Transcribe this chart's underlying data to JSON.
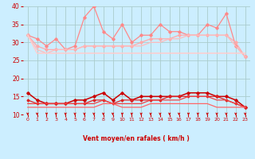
{
  "x": [
    0,
    1,
    2,
    3,
    4,
    5,
    6,
    7,
    8,
    9,
    10,
    11,
    12,
    13,
    14,
    15,
    16,
    17,
    18,
    19,
    20,
    21,
    22,
    23
  ],
  "series": [
    {
      "name": "rafales_high",
      "color": "#ff8888",
      "lw": 0.9,
      "marker": "D",
      "ms": 1.8,
      "values": [
        32,
        31,
        29,
        31,
        28,
        29,
        37,
        40,
        33,
        31,
        35,
        30,
        32,
        32,
        35,
        33,
        33,
        32,
        32,
        35,
        34,
        38,
        29,
        26
      ]
    },
    {
      "name": "rafales_mid1",
      "color": "#ffaaaa",
      "lw": 0.9,
      "marker": "D",
      "ms": 1.8,
      "values": [
        32,
        29,
        28,
        28,
        28,
        28,
        29,
        29,
        29,
        29,
        29,
        29,
        30,
        31,
        31,
        31,
        32,
        32,
        32,
        32,
        32,
        32,
        30,
        26
      ]
    },
    {
      "name": "rafales_mid2",
      "color": "#ffbbbb",
      "lw": 0.9,
      "marker": null,
      "ms": 0,
      "values": [
        32,
        28,
        27,
        28,
        28,
        28,
        29,
        29,
        29,
        29,
        29,
        29,
        29,
        30,
        30,
        31,
        31,
        32,
        32,
        32,
        32,
        32,
        29,
        26
      ]
    },
    {
      "name": "moyen_flat",
      "color": "#ffcccc",
      "lw": 1.1,
      "marker": null,
      "ms": 0,
      "values": [
        32,
        27,
        27,
        27,
        27,
        27,
        27,
        27,
        27,
        27,
        27,
        27,
        27,
        27,
        27,
        27,
        27,
        27,
        27,
        27,
        27,
        27,
        27,
        27
      ]
    },
    {
      "name": "vent_high",
      "color": "#cc0000",
      "lw": 1.1,
      "marker": "D",
      "ms": 1.8,
      "values": [
        16,
        14,
        13,
        13,
        13,
        14,
        14,
        15,
        16,
        14,
        16,
        14,
        15,
        15,
        15,
        15,
        15,
        16,
        16,
        16,
        15,
        15,
        14,
        12
      ]
    },
    {
      "name": "vent_mid1",
      "color": "#dd2222",
      "lw": 0.9,
      "marker": "D",
      "ms": 1.5,
      "values": [
        14,
        13,
        13,
        13,
        13,
        13,
        13,
        14,
        14,
        13,
        14,
        14,
        14,
        14,
        14,
        15,
        15,
        15,
        15,
        15,
        15,
        14,
        13,
        12
      ]
    },
    {
      "name": "vent_mid2",
      "color": "#ee4444",
      "lw": 0.9,
      "marker": null,
      "ms": 0,
      "values": [
        13,
        13,
        13,
        13,
        13,
        13,
        13,
        13,
        14,
        13,
        13,
        13,
        13,
        14,
        14,
        14,
        14,
        15,
        15,
        15,
        14,
        14,
        13,
        12
      ]
    },
    {
      "name": "vent_low",
      "color": "#ff6666",
      "lw": 0.9,
      "marker": null,
      "ms": 0,
      "values": [
        12,
        12,
        12,
        12,
        12,
        12,
        12,
        12,
        13,
        13,
        12,
        12,
        12,
        13,
        13,
        13,
        13,
        13,
        13,
        13,
        12,
        12,
        12,
        12
      ]
    }
  ],
  "xlabel": "Vent moyen/en rafales ( km/h )",
  "ylim": [
    10,
    40
  ],
  "yticks": [
    10,
    15,
    20,
    25,
    30,
    35,
    40
  ],
  "xticks": [
    0,
    1,
    2,
    3,
    4,
    5,
    6,
    7,
    8,
    9,
    10,
    11,
    12,
    13,
    14,
    15,
    16,
    17,
    18,
    19,
    20,
    21,
    22,
    23
  ],
  "bg_color": "#cceeff",
  "grid_color": "#aacccc",
  "tick_color": "#cc0000",
  "arrow_color": "#cc0000"
}
